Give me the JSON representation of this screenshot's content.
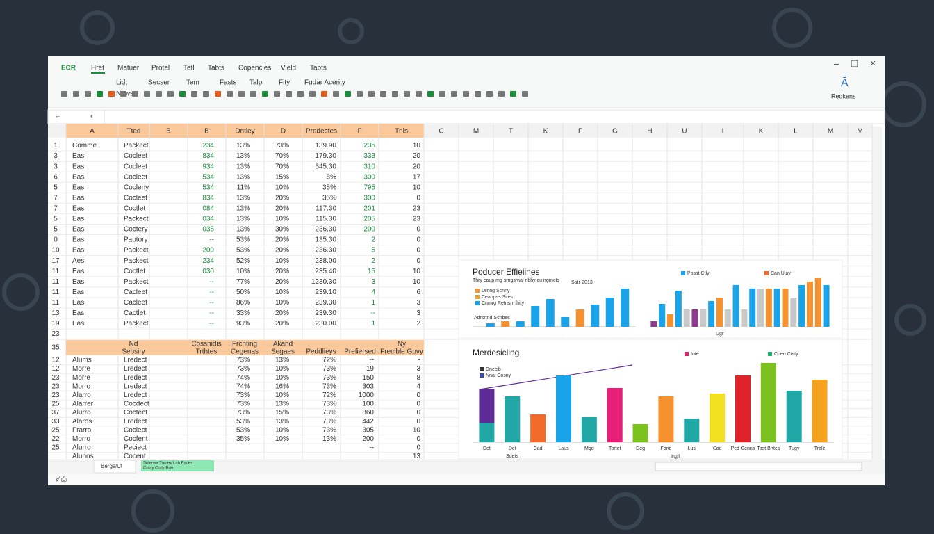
{
  "menu": [
    "ECR",
    "Hret",
    "Matuer",
    "Protel",
    "Tetl",
    "Tabts",
    "Copencies",
    "Vield",
    "Tabts"
  ],
  "ribbon_top": [
    "Lidt",
    "Secser",
    "Tem",
    "Fasts",
    "Talp",
    "Fity",
    "Fudar Acerity"
  ],
  "ribbon_bottom": [
    "Nows"
  ],
  "account": "Redkens",
  "columns": [
    "A",
    "Tted",
    "B",
    "B",
    "Dntley",
    "D",
    "Prodectes",
    "F",
    "Tnls",
    "C",
    "M",
    "T",
    "K",
    "F",
    "G",
    "H",
    "U",
    "I",
    "K",
    "L",
    "M",
    "M"
  ],
  "table1": [
    {
      "n": "1",
      "a": "Comme",
      "t": "Packect",
      "b": "234",
      "c": "13%",
      "d": "73%",
      "e": "139.90",
      "f": "235",
      "g": "10"
    },
    {
      "n": "3",
      "a": "Eas",
      "t": "Cocleet",
      "b": "834",
      "c": "13%",
      "d": "70%",
      "e": "179.30",
      "f": "333",
      "g": "20"
    },
    {
      "n": "3",
      "a": "Eas",
      "t": "Cocleet",
      "b": "934",
      "c": "13%",
      "d": "70%",
      "e": "645.30",
      "f": "310",
      "g": "20"
    },
    {
      "n": "6",
      "a": "Eas",
      "t": "Cocleet",
      "b": "534",
      "c": "13%",
      "d": "15%",
      "e": "8%",
      "f": "300",
      "g": "17"
    },
    {
      "n": "5",
      "a": "Eas",
      "t": "Cocleny",
      "b": "534",
      "c": "11%",
      "d": "10%",
      "e": "35%",
      "f": "795",
      "g": "10"
    },
    {
      "n": "7",
      "a": "Eas",
      "t": "Cocleet",
      "b": "834",
      "c": "13%",
      "d": "20%",
      "e": "35%",
      "f": "300",
      "g": "0"
    },
    {
      "n": "7",
      "a": "Eas",
      "t": "Coctlet",
      "b": "084",
      "c": "13%",
      "d": "20%",
      "e": "117.30",
      "f": "201",
      "g": "23"
    },
    {
      "n": "5",
      "a": "Eas",
      "t": "Packect",
      "b": "034",
      "c": "13%",
      "d": "10%",
      "e": "115.30",
      "f": "205",
      "g": "23"
    },
    {
      "n": "5",
      "a": "Eas",
      "t": "Coctery",
      "b": "035",
      "c": "13%",
      "d": "30%",
      "e": "236.30",
      "f": "200",
      "g": "0"
    },
    {
      "n": "0",
      "a": "Eas",
      "t": "Paptory",
      "b": "--",
      "c": "53%",
      "d": "20%",
      "e": "135.30",
      "f": "2",
      "g": "0"
    },
    {
      "n": "10",
      "a": "Eas",
      "t": "Packect",
      "b": "200",
      "c": "53%",
      "d": "20%",
      "e": "236.30",
      "f": "5",
      "g": "0"
    },
    {
      "n": "17",
      "a": "Aes",
      "t": "Packect",
      "b": "234",
      "c": "52%",
      "d": "10%",
      "e": "238.00",
      "f": "2",
      "g": "0"
    },
    {
      "n": "11",
      "a": "Eas",
      "t": "Coctlet",
      "b": "030",
      "c": "10%",
      "d": "20%",
      "e": "235.40",
      "f": "15",
      "g": "10"
    },
    {
      "n": "11",
      "a": "Eas",
      "t": "Packect",
      "b": "--",
      "c": "77%",
      "d": "20%",
      "e": "1230.30",
      "f": "3",
      "g": "10"
    },
    {
      "n": "11",
      "a": "Eas",
      "t": "Cacleet",
      "b": "--",
      "c": "50%",
      "d": "10%",
      "e": "239.10",
      "f": "4",
      "g": "6"
    },
    {
      "n": "11",
      "a": "Eas",
      "t": "Cacleet",
      "b": "--",
      "c": "86%",
      "d": "10%",
      "e": "239.30",
      "f": "1",
      "g": "3"
    },
    {
      "n": "13",
      "a": "Eas",
      "t": "Cactlet",
      "b": "--",
      "c": "33%",
      "d": "20%",
      "e": "239.30",
      "f": "--",
      "g": "3"
    },
    {
      "n": "19",
      "a": "Eas",
      "t": "Packect",
      "b": "--",
      "c": "93%",
      "d": "20%",
      "e": "230.00",
      "f": "1",
      "g": "2"
    }
  ],
  "blank_row": "23",
  "table2_header": {
    "n": "35",
    "t": [
      "Nd",
      "Sebsiry"
    ],
    "b": [
      "Cossnidis",
      "Trthtes"
    ],
    "c": [
      "Frcnting",
      "Cegenas"
    ],
    "d": [
      "Akand",
      "Segaes"
    ],
    "e": [
      "Peddlieys"
    ],
    "f": [
      "Prefiersed"
    ],
    "g": [
      "Ny",
      "Frecible Gpvy"
    ]
  },
  "table2": [
    {
      "n": "12",
      "a": "Alums",
      "t": "Lredect",
      "c": "73%",
      "d": "13%",
      "e": "72%",
      "f": "--",
      "g": "-"
    },
    {
      "n": "12",
      "a": "Morre",
      "t": "Lredect",
      "c": "73%",
      "d": "10%",
      "e": "73%",
      "f": "19",
      "g": "3"
    },
    {
      "n": "23",
      "a": "Morre",
      "t": "Lredect",
      "c": "74%",
      "d": "10%",
      "e": "73%",
      "f": "150",
      "g": "8"
    },
    {
      "n": "23",
      "a": "Morro",
      "t": "Lredect",
      "c": "74%",
      "d": "16%",
      "e": "73%",
      "f": "303",
      "g": "4"
    },
    {
      "n": "23",
      "a": "Alarro",
      "t": "Lredect",
      "c": "73%",
      "d": "10%",
      "e": "72%",
      "f": "1000",
      "g": "0"
    },
    {
      "n": "25",
      "a": "Alarrer",
      "t": "Cocdect",
      "c": "73%",
      "d": "13%",
      "e": "73%",
      "f": "100",
      "g": "0"
    },
    {
      "n": "37",
      "a": "Alurro",
      "t": "Coctect",
      "c": "73%",
      "d": "15%",
      "e": "73%",
      "f": "860",
      "g": "0"
    },
    {
      "n": "33",
      "a": "Alaros",
      "t": "Lredect",
      "c": "53%",
      "d": "13%",
      "e": "73%",
      "f": "442",
      "g": "0"
    },
    {
      "n": "25",
      "a": "Frarro",
      "t": "Coclect",
      "c": "53%",
      "d": "10%",
      "e": "73%",
      "f": "305",
      "g": "10"
    },
    {
      "n": "22",
      "a": "Morro",
      "t": "Cocfent",
      "c": "35%",
      "d": "10%",
      "e": "13%",
      "f": "200",
      "g": "0"
    },
    {
      "n": "25",
      "a": "Alurro",
      "t": "Peciect",
      "f": "--",
      "g": "0"
    },
    {
      "a": "Alunos",
      "t": "Cocent",
      "g": "13"
    }
  ],
  "charts": [
    {
      "title": "Poducer Effieiines",
      "subtitle": "Thry caup mg srngsrnal nbhy cu ngrncts",
      "note": "Satr-2013",
      "legend": [
        {
          "name": "Drnng Scnny",
          "color": "#f5922f"
        },
        {
          "name": "Ceanpss Sites",
          "color": "#e6a23c"
        },
        {
          "name": "Cnmrg Retnsrrrfhity",
          "color": "#1aa3e8"
        }
      ],
      "legend2": [
        {
          "name": "Posst Ctly",
          "color": "#1aa3e8"
        },
        {
          "name": "Can Ulay",
          "color": "#f26b2a"
        }
      ],
      "axis_label": "Adrsrtnd Scnbes",
      "corner_label": "Ugr",
      "bars": [
        [
          {
            "value": 5,
            "color": "#1aa3e8"
          }
        ],
        [
          {
            "value": 8,
            "color": "#f5922f"
          }
        ],
        [
          {
            "value": 8,
            "color": "#1aa3e8"
          }
        ],
        [
          {
            "value": 30,
            "color": "#1aa3e8"
          }
        ],
        [
          {
            "value": 40,
            "color": "#1aa3e8"
          }
        ],
        [
          {
            "value": 14,
            "color": "#1aa3e8"
          }
        ],
        [
          {
            "value": 25,
            "color": "#f5922f"
          }
        ],
        [
          {
            "value": 32,
            "color": "#1aa3e8"
          }
        ],
        [
          {
            "value": 42,
            "color": "#1aa3e8"
          }
        ],
        [
          {
            "value": 55,
            "color": "#1aa3e8"
          }
        ]
      ],
      "bars2": [
        [
          {
            "value": 8,
            "color": "#8e3a8e"
          }
        ],
        [
          {
            "value": 33,
            "color": "#1aa3e8"
          }
        ],
        [
          {
            "value": 18,
            "color": "#f5922f"
          }
        ],
        [
          {
            "value": 52,
            "color": "#1aa3e8"
          }
        ],
        [
          {
            "value": 25,
            "color": "#c9c9c9"
          }
        ],
        [
          {
            "value": 25,
            "color": "#8e3a8e"
          }
        ],
        [
          {
            "value": 25,
            "color": "#c9c9c9"
          }
        ],
        [
          {
            "value": 37,
            "color": "#1aa3e8"
          }
        ],
        [
          {
            "value": 42,
            "color": "#f5922f"
          }
        ],
        [
          {
            "value": 25,
            "color": "#c9c9c9"
          }
        ],
        [
          {
            "value": 60,
            "color": "#1aa3e8"
          }
        ],
        [
          {
            "value": 25,
            "color": "#c9c9c9"
          }
        ],
        [
          {
            "value": 55,
            "color": "#1aa3e8"
          }
        ],
        [
          {
            "value": 55,
            "color": "#c9c9c9"
          }
        ],
        [
          {
            "value": 55,
            "color": "#f5922f"
          }
        ],
        [
          {
            "value": 55,
            "color": "#1aa3e8"
          }
        ],
        [
          {
            "value": 55,
            "color": "#f5922f"
          }
        ],
        [
          {
            "value": 42,
            "color": "#c9c9c9"
          }
        ],
        [
          {
            "value": 60,
            "color": "#1aa3e8"
          }
        ],
        [
          {
            "value": 65,
            "color": "#f5922f"
          }
        ],
        [
          {
            "value": 70,
            "color": "#f5922f"
          }
        ],
        [
          {
            "value": 60,
            "color": "#1aa3e8"
          }
        ]
      ]
    },
    {
      "title": "Merdesicling",
      "legend": [
        {
          "name": "Dnecib",
          "color": "#333333"
        },
        {
          "name": "Nnal Cosny",
          "color": "#3a48b0"
        }
      ],
      "legend2": [
        {
          "name": "Inte",
          "color": "#e01f6b"
        },
        {
          "name": "Cnen Ctsty",
          "color": "#1ab76a"
        }
      ],
      "axis_label": "Sdets",
      "corner_label": "Ingjt",
      "categories": [
        "Det",
        "Det",
        "Cad",
        "Laus",
        "Mgd",
        "Tortet",
        "Deg",
        "Forid",
        "Lus",
        "Cad",
        "Pcd Genns",
        "Tast Brttes",
        "Tugy",
        "Trale"
      ],
      "bars": [
        [
          {
            "value": 28,
            "color": "#22a7a7"
          },
          {
            "value": 48,
            "color": "#5e2a95"
          }
        ],
        [
          {
            "value": 66,
            "color": "#22a7a7"
          }
        ],
        [
          {
            "value": 40,
            "color": "#f26b2a"
          }
        ],
        [
          {
            "value": 96,
            "color": "#1aa3e8"
          }
        ],
        [
          {
            "value": 36,
            "color": "#22a7a7"
          }
        ],
        [
          {
            "value": 78,
            "color": "#e61f77"
          }
        ],
        [
          {
            "value": 26,
            "color": "#7cc21f"
          }
        ],
        [
          {
            "value": 66,
            "color": "#f5922f"
          }
        ],
        [
          {
            "value": 34,
            "color": "#22a7a7"
          }
        ],
        [
          {
            "value": 70,
            "color": "#f2e020"
          }
        ],
        [
          {
            "value": 96,
            "color": "#e0222a"
          }
        ],
        [
          {
            "value": 114,
            "color": "#7cc21f"
          }
        ],
        [
          {
            "value": 74,
            "color": "#22a7a7"
          }
        ],
        [
          {
            "value": 90,
            "color": "#f5a21f"
          }
        ]
      ]
    }
  ],
  "sheet_tab": "Bergs/Ut",
  "selected_cell": [
    "Snlerwa Tnolex Lab Esdes",
    "Cnlay Cotiy Brte"
  ]
}
